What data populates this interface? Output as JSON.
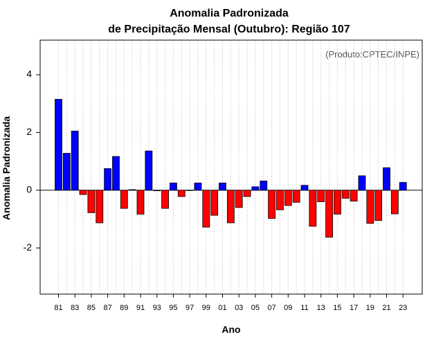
{
  "chart_data": {
    "type": "bar",
    "title_line1": "Anomalia Padronizada",
    "title_line2": "de Precipitação Mensal (Outubro): Região 107",
    "xlabel": "Ano",
    "ylabel": "Anomalia Padronizada",
    "annotation": "(Produto:CPTEC/INPE)",
    "ylim": [
      -3.6,
      5.2
    ],
    "yticks": [
      {
        "value": -2,
        "label": "-2"
      },
      {
        "value": 0,
        "label": "0"
      },
      {
        "value": 2,
        "label": "2"
      },
      {
        "value": 4,
        "label": "4"
      }
    ],
    "categories": [
      "81",
      "82",
      "83",
      "84",
      "85",
      "86",
      "87",
      "88",
      "89",
      "90",
      "91",
      "92",
      "93",
      "94",
      "95",
      "96",
      "97",
      "98",
      "99",
      "00",
      "01",
      "02",
      "03",
      "04",
      "05",
      "06",
      "07",
      "08",
      "09",
      "10",
      "11",
      "12",
      "13",
      "14",
      "15",
      "16",
      "17",
      "18",
      "19",
      "20",
      "21",
      "22",
      "23"
    ],
    "xtick_labels": [
      "81",
      "83",
      "85",
      "87",
      "89",
      "91",
      "93",
      "95",
      "97",
      "99",
      "01",
      "03",
      "05",
      "07",
      "09",
      "11",
      "13",
      "15",
      "17",
      "19",
      "21",
      "23"
    ],
    "values": [
      3.15,
      1.28,
      2.05,
      -0.15,
      -0.78,
      -1.13,
      0.75,
      1.17,
      -0.63,
      0.02,
      -0.83,
      1.36,
      -0.02,
      -0.63,
      0.25,
      -0.22,
      -0.01,
      0.25,
      -1.28,
      -0.87,
      0.25,
      -1.13,
      -0.6,
      -0.22,
      0.12,
      0.32,
      -0.98,
      -0.68,
      -0.53,
      -0.42,
      0.17,
      -1.25,
      -0.4,
      -1.63,
      -0.83,
      -0.28,
      -0.38,
      0.5,
      -1.15,
      -1.05,
      0.78,
      -0.82,
      0.27
    ],
    "colors": {
      "positive": "#0000ff",
      "negative": "#ff0000",
      "grid": "#d3d3d3",
      "axis": "#000000"
    }
  }
}
